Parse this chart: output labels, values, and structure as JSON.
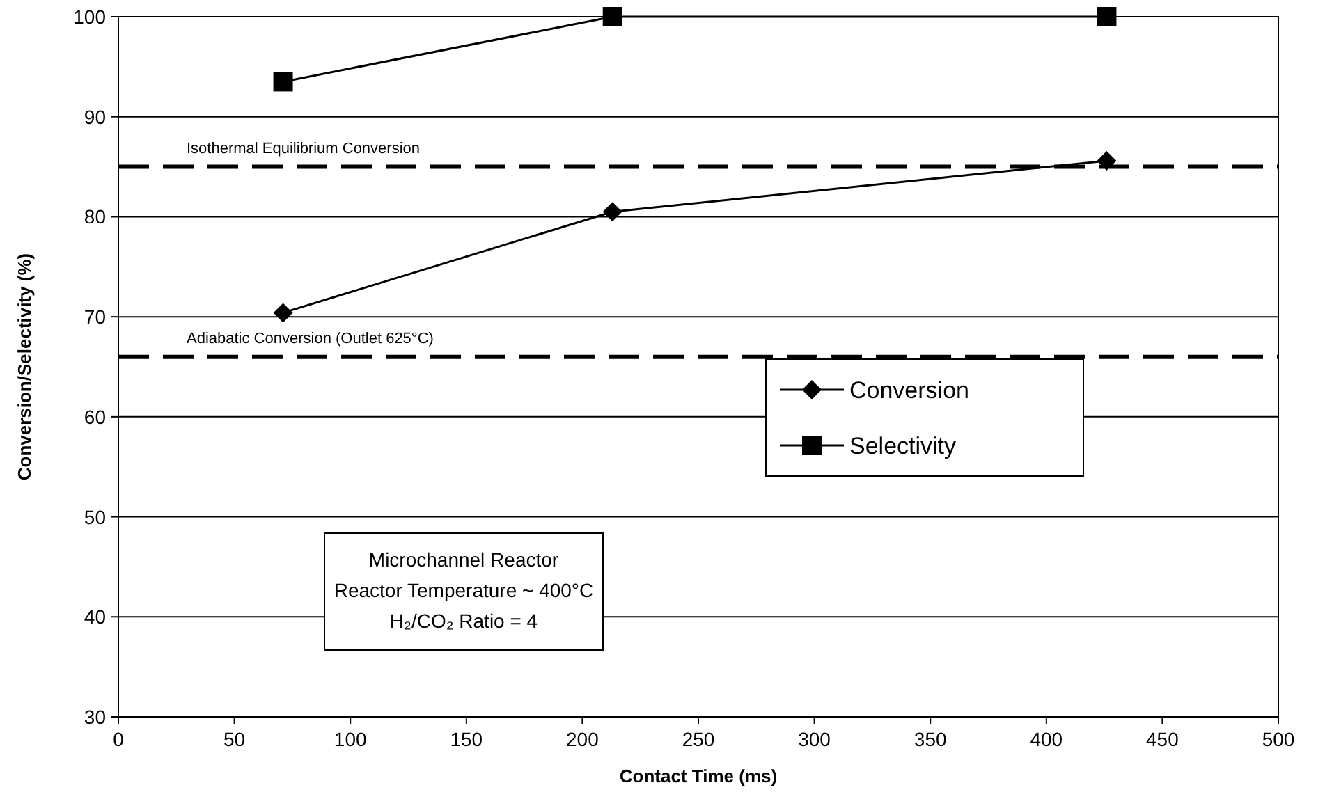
{
  "chart_data": {
    "type": "line",
    "xlabel": "Contact Time (ms)",
    "ylabel": "Conversion/Selectivity (%)",
    "xlim": [
      0,
      500
    ],
    "xticks": [
      0,
      50,
      100,
      150,
      200,
      250,
      300,
      350,
      400,
      450,
      500
    ],
    "ylim": [
      30,
      100
    ],
    "yticks": [
      30,
      40,
      50,
      60,
      70,
      80,
      90,
      100
    ],
    "grid": "y",
    "legend": "right",
    "series": [
      {
        "name": "Conversion",
        "color": "#000000",
        "marker": "diamond",
        "x": [
          71,
          213,
          426
        ],
        "values": [
          70.4,
          80.5,
          85.6
        ]
      },
      {
        "name": "Selectivity",
        "color": "#000000",
        "marker": "square",
        "x": [
          71,
          213,
          426
        ],
        "values": [
          93.5,
          100,
          100
        ]
      }
    ],
    "ref_lines": [
      {
        "axis": "y",
        "value": 85,
        "label": "Isothermal Equilibrium Conversion",
        "color": "#000000",
        "line_style": "dashed"
      },
      {
        "axis": "y",
        "value": 66,
        "label": "Adiabatic Conversion (Outlet 625°C)",
        "color": "#000000",
        "line_style": "dashed"
      }
    ],
    "annotations": [
      "Microchannel Reactor",
      "Reactor Temperature ~ 400°C",
      "H₂/CO₂ Ratio = 4"
    ]
  }
}
